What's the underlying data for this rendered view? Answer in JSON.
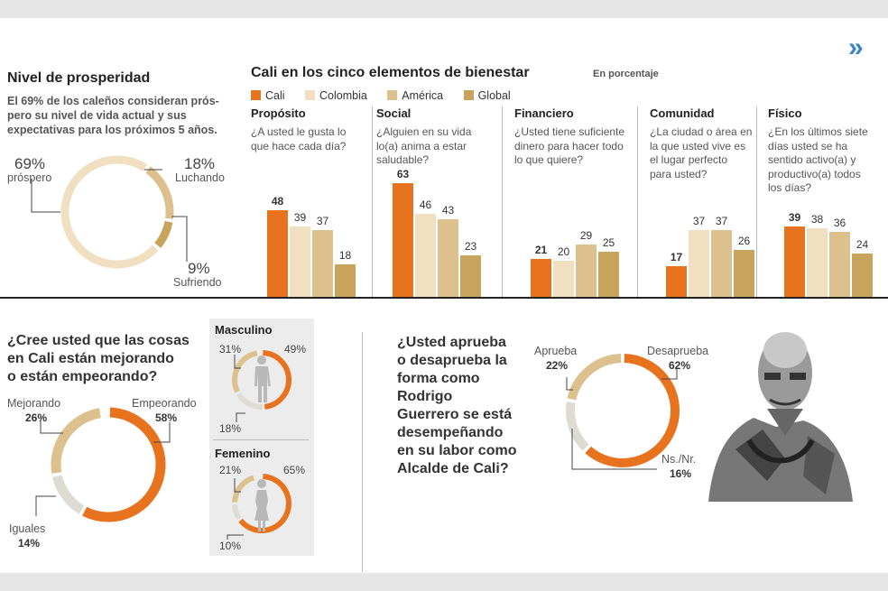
{
  "colors": {
    "cali": "#e8731f",
    "colombia": "#f0dfc0",
    "america": "#dcc08e",
    "global": "#c8a35c",
    "gray": "#dedbd2"
  },
  "nav": {
    "icon": "double-chevron-right-icon",
    "glyph": "»"
  },
  "prosperity": {
    "title": "Nivel de prosperidad",
    "subtitle_lines": [
      "El 69% de los caleños consideran prós-",
      "pero su nivel de vida actual y sus",
      "expectativas para los próximos 5 años."
    ],
    "prospero": {
      "pct": "69%",
      "label": "próspero"
    },
    "luchando": {
      "pct": "18%",
      "label": "Luchando"
    },
    "sufriendo": {
      "pct": "9%",
      "label": "Sufriendo"
    }
  },
  "wellbeing": {
    "title": "Cali en los cinco elementos de bienestar",
    "unit": "En porcentaje",
    "legend": [
      "Cali",
      "Colombia",
      "América",
      "Global"
    ]
  },
  "chart_data": [
    {
      "type": "bar",
      "title": "Cali en los cinco elementos de bienestar",
      "ylabel": "En porcentaje",
      "series_names": [
        "Cali",
        "Colombia",
        "América",
        "Global"
      ],
      "ylim": [
        0,
        70
      ],
      "groups": [
        {
          "name": "Propósito",
          "question": [
            "¿A usted le gusta lo",
            "que hace cada día?"
          ],
          "values": [
            48,
            39,
            37,
            18
          ]
        },
        {
          "name": "Social",
          "question": [
            "¿Alguien en su vida",
            "lo(a) anima a estar",
            "saludable?"
          ],
          "values": [
            63,
            46,
            43,
            23
          ]
        },
        {
          "name": "Financiero",
          "question": [
            "¿Usted tiene suficiente",
            "dinero para hacer todo",
            "lo que quiere?"
          ],
          "values": [
            21,
            20,
            29,
            25
          ]
        },
        {
          "name": "Comunidad",
          "question": [
            "¿La ciudad o área en",
            "la que usted vive es",
            "el lugar perfecto",
            "para usted?"
          ],
          "values": [
            17,
            37,
            37,
            26
          ]
        },
        {
          "name": "Físico",
          "question": [
            "¿En los últimos siete",
            "días usted se ha",
            "sentido activo(a) y",
            "productivo(a) todos",
            "los días?"
          ],
          "values": [
            39,
            38,
            36,
            24
          ]
        }
      ]
    },
    {
      "type": "pie",
      "title": "Nivel de prosperidad",
      "slices": [
        {
          "label": "próspero",
          "value": 69
        },
        {
          "label": "Luchando",
          "value": 18
        },
        {
          "label": "Sufriendo",
          "value": 9
        }
      ]
    },
    {
      "type": "pie",
      "title": "¿Cree usted que las cosas en Cali están mejorando o están empeorando?",
      "slices": [
        {
          "label": "Empeorando",
          "value": 58
        },
        {
          "label": "Iguales",
          "value": 14
        },
        {
          "label": "Mejorando",
          "value": 26
        }
      ]
    },
    {
      "type": "pie",
      "title": "Masculino",
      "slices": [
        {
          "label": "Empeorando",
          "value": 49
        },
        {
          "label": "Iguales",
          "value": 18
        },
        {
          "label": "Mejorando",
          "value": 31
        }
      ]
    },
    {
      "type": "pie",
      "title": "Femenino",
      "slices": [
        {
          "label": "Empeorando",
          "value": 65
        },
        {
          "label": "Iguales",
          "value": 10
        },
        {
          "label": "Mejorando",
          "value": 21
        }
      ]
    },
    {
      "type": "pie",
      "title": "¿Usted aprueba o desaprueba la forma como Rodrigo Guerrero se está desempeñando en su labor como Alcalde de Cali?",
      "slices": [
        {
          "label": "Desaprueba",
          "value": 62
        },
        {
          "label": "Ns./Nr.",
          "value": 16
        },
        {
          "label": "Aprueba",
          "value": 22
        }
      ]
    }
  ],
  "trend": {
    "question_lines": [
      "¿Cree usted que las cosas",
      "en Cali están mejorando",
      "o están empeorando?"
    ],
    "mejorando": {
      "label": "Mejorando",
      "pct": "26%"
    },
    "empeorando": {
      "label": "Empeorando",
      "pct": "58%"
    },
    "iguales": {
      "label": "Iguales",
      "pct": "14%"
    },
    "male": {
      "title": "Masculino",
      "mej": "31%",
      "emp": "49%",
      "igu": "18%",
      "icon": "male-figure-icon"
    },
    "female": {
      "title": "Femenino",
      "mej": "21%",
      "emp": "65%",
      "igu": "10%",
      "icon": "female-figure-icon"
    }
  },
  "approval": {
    "question_lines": [
      "¿Usted aprueba",
      "o desaprueba la",
      "forma como",
      "Rodrigo",
      "Guerrero se está",
      "desempeñando",
      "en su labor como",
      "Alcalde de Cali?"
    ],
    "aprueba": {
      "label": "Aprueba",
      "pct": "22%"
    },
    "desaprueba": {
      "label": "Desaprueba",
      "pct": "62%"
    },
    "nsnr": {
      "label": "Ns./Nr.",
      "pct": "16%"
    },
    "portrait": "mayor-portrait-illustration"
  }
}
